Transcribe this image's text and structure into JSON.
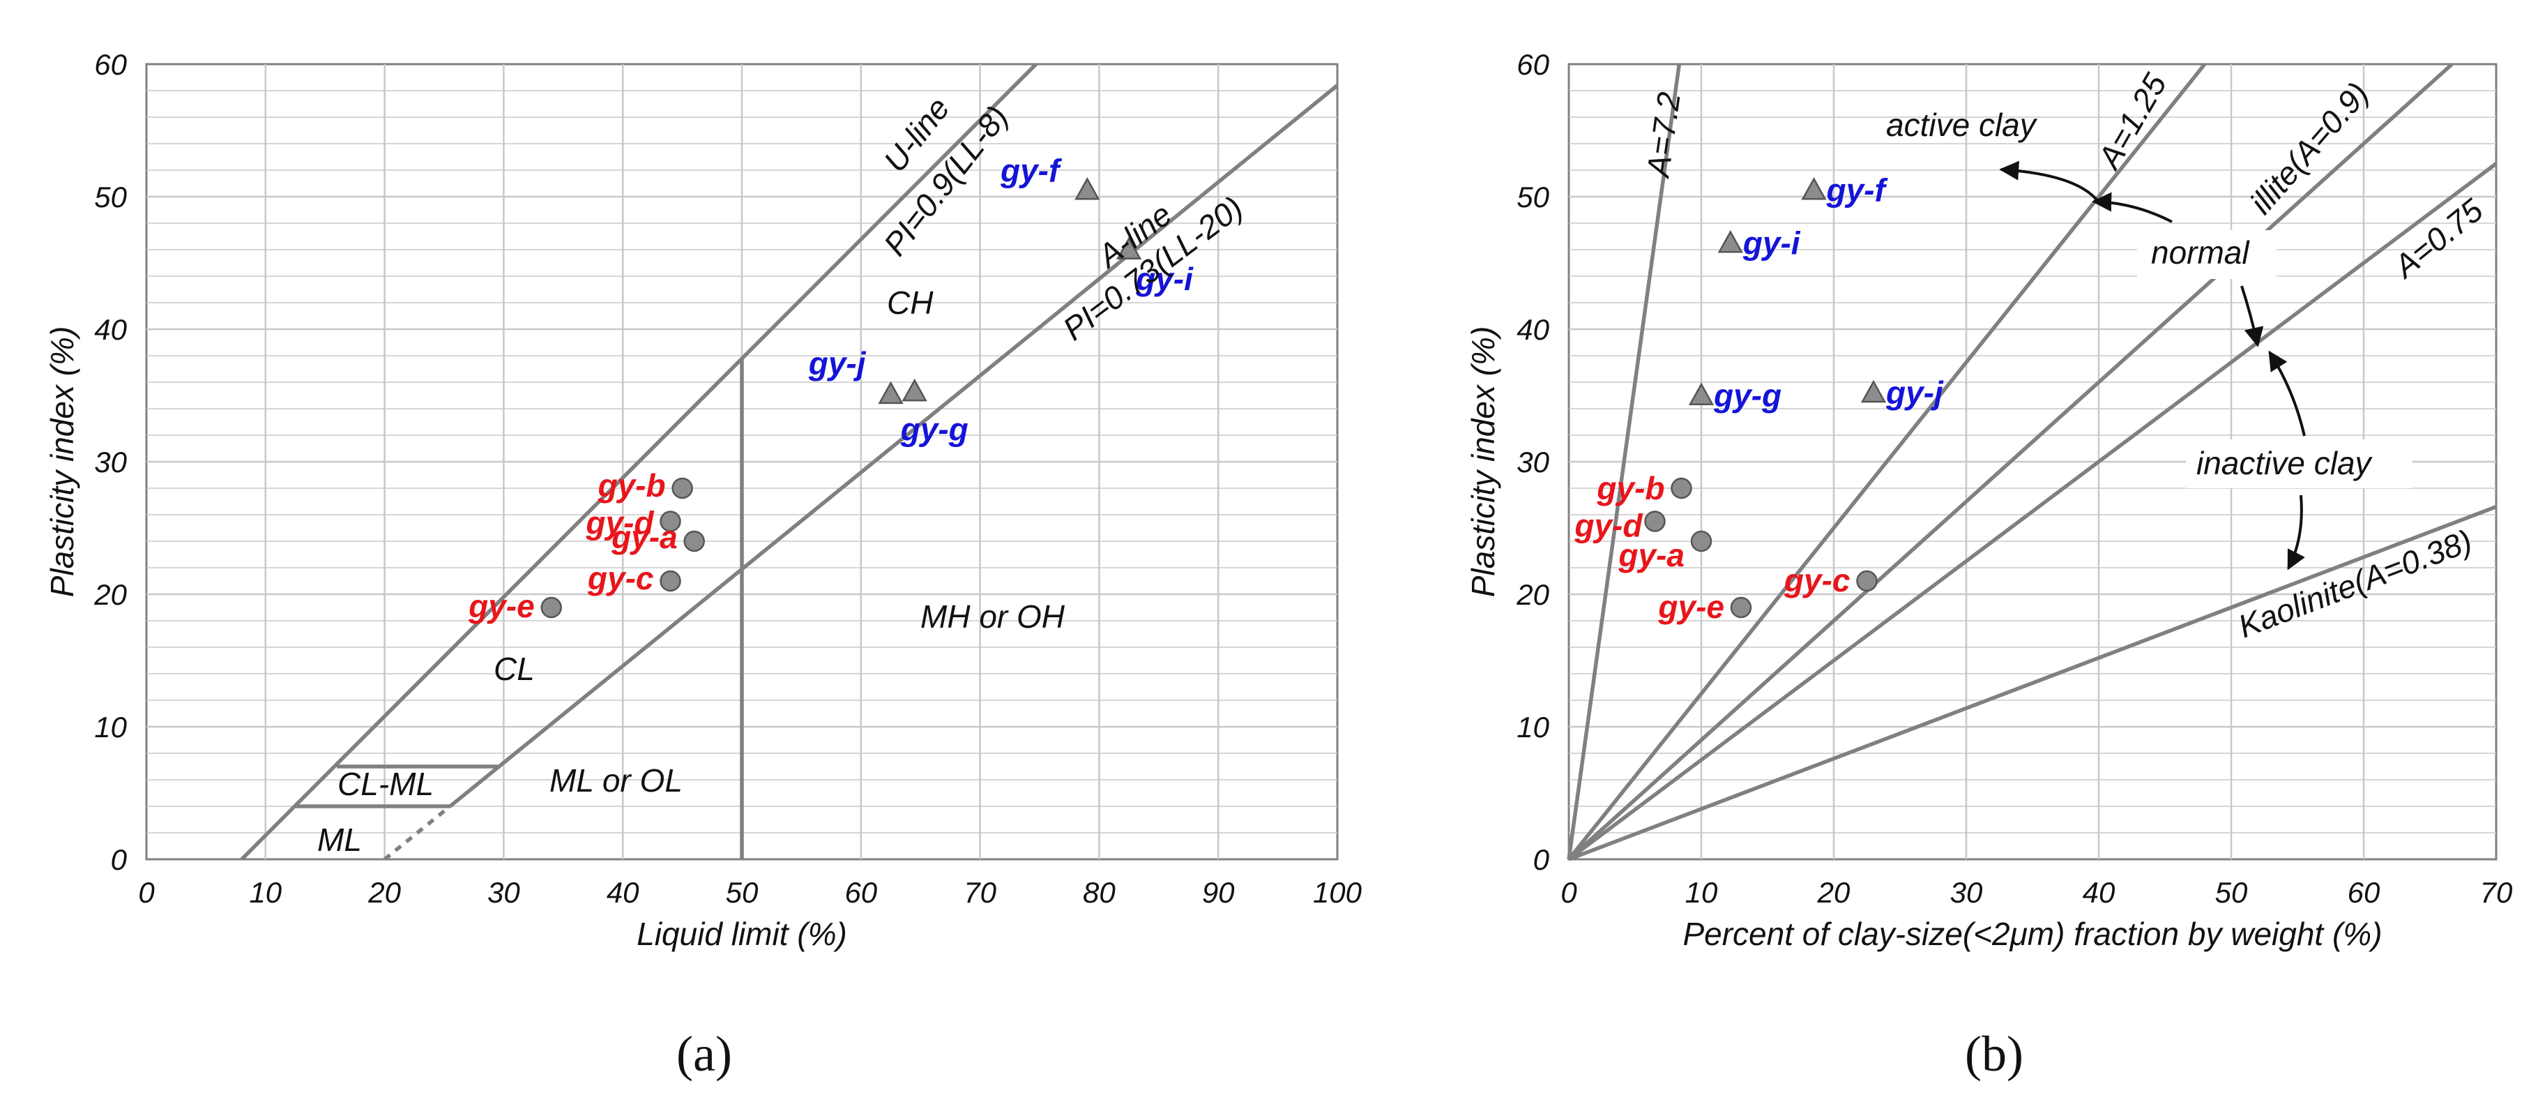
{
  "colors": {
    "red": "#e8151b",
    "blue": "#1414d8",
    "line": "#808080",
    "grid": "#c8c8c8",
    "marker": "#8c8c8c"
  },
  "chart_data": [
    {
      "id": "a",
      "type": "scatter",
      "caption": "(a)",
      "xlabel": "Liquid limit (%)",
      "ylabel": "Plasticity index (%)",
      "xlim": [
        0,
        100
      ],
      "ylim": [
        0,
        60
      ],
      "xticks": [
        "0",
        "10",
        "20",
        "30",
        "40",
        "50",
        "60",
        "70",
        "80",
        "90",
        "100"
      ],
      "yticks": [
        "0",
        "10",
        "20",
        "30",
        "40",
        "50",
        "60"
      ],
      "points": [
        {
          "name": "gy-a",
          "x": 46,
          "y": 24,
          "marker": "circle",
          "color": "red"
        },
        {
          "name": "gy-b",
          "x": 45,
          "y": 28,
          "marker": "circle",
          "color": "red"
        },
        {
          "name": "gy-c",
          "x": 44,
          "y": 21,
          "marker": "circle",
          "color": "red"
        },
        {
          "name": "gy-d",
          "x": 44,
          "y": 25.5,
          "marker": "circle",
          "color": "red"
        },
        {
          "name": "gy-e",
          "x": 34,
          "y": 19,
          "marker": "circle",
          "color": "red"
        },
        {
          "name": "gy-f",
          "x": 79,
          "y": 50.5,
          "marker": "triangle",
          "color": "blue"
        },
        {
          "name": "gy-g",
          "x": 64.5,
          "y": 35.3,
          "marker": "triangle",
          "color": "blue"
        },
        {
          "name": "gy-i",
          "x": 82.5,
          "y": 46,
          "marker": "triangle",
          "color": "blue"
        },
        {
          "name": "gy-j",
          "x": 62.5,
          "y": 35.1,
          "marker": "triangle",
          "color": "blue"
        }
      ],
      "lines": [
        {
          "name": "u-line",
          "label": "U-line",
          "equation": "PI=0.9(LL-8)",
          "x": [
            8,
            74.7
          ],
          "y": [
            0,
            60
          ]
        },
        {
          "name": "a-line",
          "label": "A-line",
          "equation": "PI=0.73(LL-20)",
          "x": [
            25.5,
            100
          ],
          "y": [
            4,
            58.4
          ]
        },
        {
          "name": "ll50-line",
          "x": [
            50,
            50
          ],
          "y": [
            0,
            37.8
          ]
        },
        {
          "name": "cl-ml-top",
          "x": [
            16,
            29.5
          ],
          "y": [
            7,
            7
          ]
        },
        {
          "name": "cl-ml-bottom",
          "x": [
            12.5,
            25.5
          ],
          "y": [
            4,
            4
          ]
        },
        {
          "name": "a-line-dashed",
          "x": [
            20,
            25.5
          ],
          "y": [
            0,
            4
          ],
          "dashed": true
        }
      ],
      "regions": [
        "CH",
        "CL",
        "CL-ML",
        "ML",
        "ML or OL",
        "MH or OH"
      ]
    },
    {
      "id": "b",
      "type": "scatter",
      "caption": "(b)",
      "xlabel": "Percent of clay-size(<2μm) fraction by weight (%)",
      "ylabel": "Plasticity index (%)",
      "xlim": [
        0,
        70
      ],
      "ylim": [
        0,
        60
      ],
      "xticks": [
        "0",
        "10",
        "20",
        "30",
        "40",
        "50",
        "60",
        "70"
      ],
      "yticks": [
        "0",
        "10",
        "20",
        "30",
        "40",
        "50",
        "60"
      ],
      "points": [
        {
          "name": "gy-a",
          "x": 10,
          "y": 24,
          "marker": "circle",
          "color": "red"
        },
        {
          "name": "gy-b",
          "x": 8.5,
          "y": 28,
          "marker": "circle",
          "color": "red"
        },
        {
          "name": "gy-c",
          "x": 22.5,
          "y": 21,
          "marker": "circle",
          "color": "red"
        },
        {
          "name": "gy-d",
          "x": 6.5,
          "y": 25.5,
          "marker": "circle",
          "color": "red"
        },
        {
          "name": "gy-e",
          "x": 13,
          "y": 19,
          "marker": "circle",
          "color": "red"
        },
        {
          "name": "gy-f",
          "x": 18.5,
          "y": 50.5,
          "marker": "triangle",
          "color": "blue"
        },
        {
          "name": "gy-g",
          "x": 10,
          "y": 35,
          "marker": "triangle",
          "color": "blue"
        },
        {
          "name": "gy-i",
          "x": 12.2,
          "y": 46.5,
          "marker": "triangle",
          "color": "blue"
        },
        {
          "name": "gy-j",
          "x": 23,
          "y": 35.2,
          "marker": "triangle",
          "color": "blue"
        }
      ],
      "activity_lines": [
        {
          "name": "a-7-2",
          "label": "A=7.2",
          "slope": 7.2
        },
        {
          "name": "a-1-25",
          "label": "A=1.25",
          "slope": 1.25
        },
        {
          "name": "illite",
          "label": "illite(A=0.9)",
          "slope": 0.9
        },
        {
          "name": "a-0-75",
          "label": "A=0.75",
          "slope": 0.75
        },
        {
          "name": "kaolinite",
          "label": "Kaolinite(A=0.38)",
          "slope": 0.38
        }
      ],
      "annotations": [
        "active clay",
        "normal",
        "inactive clay"
      ]
    }
  ]
}
